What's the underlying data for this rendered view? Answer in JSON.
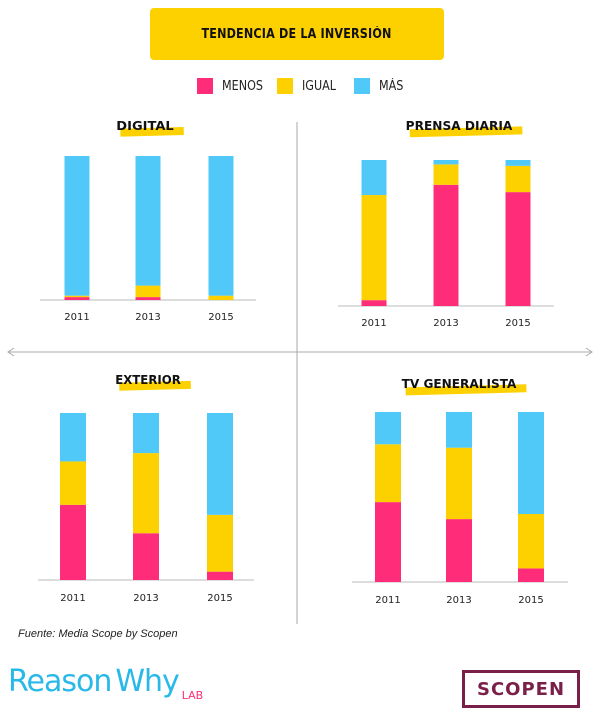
{
  "title": "TENDENCIA DE LA INVERSIÓN",
  "colors": {
    "menos": "#FF2D79",
    "igual": "#FDD100",
    "mas": "#50C8F8",
    "title_bg": "#FDD100",
    "brand_lab": "#FF2D79",
    "scopen": "#7A2048"
  },
  "legend": [
    {
      "label": "MENOS",
      "color": "#FF2D79"
    },
    {
      "label": "IGUAL",
      "color": "#FDD100"
    },
    {
      "label": "MÁS",
      "color": "#50C8F8"
    }
  ],
  "chart_data": [
    {
      "type": "bar",
      "stacked": true,
      "title": "DIGITAL",
      "categories": [
        "2011",
        "2013",
        "2015"
      ],
      "series": [
        {
          "name": "MENOS",
          "values": [
            2,
            2,
            0
          ]
        },
        {
          "name": "IGUAL",
          "values": [
            1,
            8,
            3
          ]
        },
        {
          "name": "MÁS",
          "values": [
            97,
            90,
            97
          ]
        }
      ],
      "ylim": [
        0,
        100
      ]
    },
    {
      "type": "bar",
      "stacked": true,
      "title": "PRENSA DIARIA",
      "categories": [
        "2011",
        "2013",
        "2015"
      ],
      "series": [
        {
          "name": "MENOS",
          "values": [
            4,
            83,
            78
          ]
        },
        {
          "name": "IGUAL",
          "values": [
            72,
            14,
            18
          ]
        },
        {
          "name": "MÁS",
          "values": [
            24,
            3,
            4
          ]
        }
      ],
      "ylim": [
        0,
        100
      ]
    },
    {
      "type": "bar",
      "stacked": true,
      "title": "EXTERIOR",
      "categories": [
        "2011",
        "2013",
        "2015"
      ],
      "series": [
        {
          "name": "MENOS",
          "values": [
            45,
            28,
            5
          ]
        },
        {
          "name": "IGUAL",
          "values": [
            26,
            48,
            34
          ]
        },
        {
          "name": "MÁS",
          "values": [
            29,
            24,
            61
          ]
        }
      ],
      "ylim": [
        0,
        100
      ]
    },
    {
      "type": "bar",
      "stacked": true,
      "title": "TV GENERALISTA",
      "categories": [
        "2011",
        "2013",
        "2015"
      ],
      "series": [
        {
          "name": "MENOS",
          "values": [
            47,
            37,
            8
          ]
        },
        {
          "name": "IGUAL",
          "values": [
            34,
            42,
            32
          ]
        },
        {
          "name": "MÁS",
          "values": [
            19,
            21,
            60
          ]
        }
      ],
      "ylim": [
        0,
        100
      ]
    }
  ],
  "footer": {
    "source": "Fuente: Media Scope by Scopen",
    "brand_reason": "Reason",
    "brand_why": "Why",
    "brand_lab": "LAB",
    "partner": "SCOPEN"
  }
}
